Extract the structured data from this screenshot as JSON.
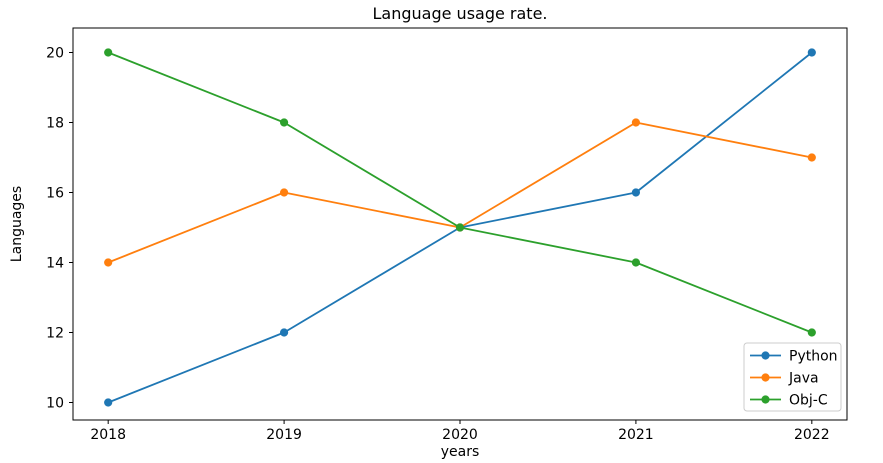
{
  "figure": {
    "background": "#ffffff",
    "spine_color": "#000000",
    "text_color": "#000000"
  },
  "chart_data": {
    "type": "line",
    "title": "Language usage rate.",
    "xlabel": "years",
    "ylabel": "Languages",
    "x": [
      2018,
      2019,
      2020,
      2021,
      2022
    ],
    "series": [
      {
        "name": "Python",
        "color": "#1f77b4",
        "values": [
          10,
          12,
          15,
          16,
          20
        ]
      },
      {
        "name": "Java",
        "color": "#ff7f0e",
        "values": [
          14,
          16,
          15,
          18,
          17
        ]
      },
      {
        "name": "Obj-C",
        "color": "#2ca02c",
        "values": [
          20,
          18,
          15,
          14,
          12
        ]
      }
    ],
    "xticks": [
      2018,
      2019,
      2020,
      2021,
      2022
    ],
    "yticks": [
      10,
      12,
      14,
      16,
      18,
      20
    ],
    "xlim": [
      2017.8,
      2022.2
    ],
    "ylim": [
      9.5,
      20.7
    ],
    "grid": false,
    "marker": "o",
    "legend": {
      "position": "lower right",
      "border_color": "#cccccc",
      "background": "rgba(255,255,255,0.8)"
    }
  }
}
